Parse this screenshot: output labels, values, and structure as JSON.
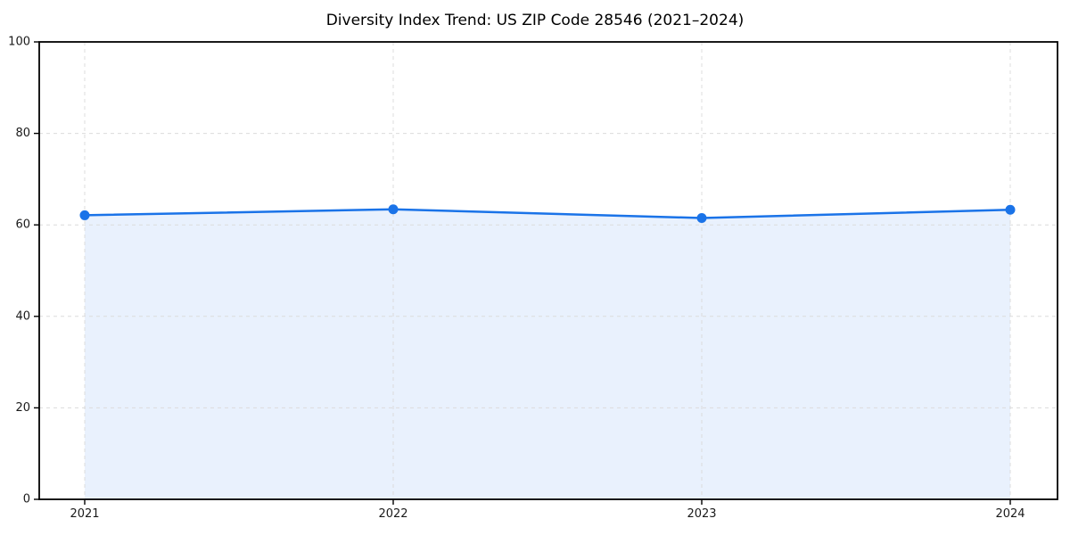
{
  "title": "Diversity Index Trend: US ZIP Code 28546 (2021–2024)",
  "chart_data": {
    "type": "area",
    "title": "Diversity Index Trend: US ZIP Code 28546 (2021–2024)",
    "x": [
      "2021",
      "2022",
      "2023",
      "2024"
    ],
    "series": [
      {
        "name": "Diversity Index",
        "values": [
          62.1,
          63.4,
          61.5,
          63.3
        ]
      }
    ],
    "xlabel": "",
    "ylabel": "",
    "ylim": [
      0,
      100
    ],
    "yticks": [
      0,
      20,
      40,
      60,
      80,
      100
    ],
    "grid": true,
    "grid_style": "dashed",
    "legend_position": "none",
    "colors": {
      "line": "#1a73e8",
      "marker": "#1a73e8",
      "fill": "#e9f1fd",
      "grid": "#dcdcdc",
      "axis": "#000000",
      "tick_text": "#1a1a1a",
      "background": "#ffffff"
    }
  }
}
